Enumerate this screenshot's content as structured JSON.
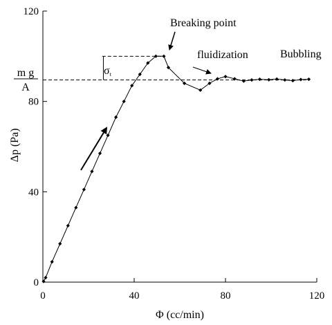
{
  "chart_data": {
    "type": "line",
    "title": "",
    "xlabel": "Φ (cc/min)",
    "ylabel": "Δp (Pa)",
    "xlim": [
      0,
      120
    ],
    "ylim": [
      0,
      120
    ],
    "xticks": [
      0,
      40,
      80,
      120
    ],
    "yticks": [
      0,
      40,
      80,
      120
    ],
    "xtick_labels": [
      "0",
      "40",
      "80",
      "120"
    ],
    "ytick_labels": [
      "0",
      "40",
      "80",
      "120"
    ],
    "grid": false,
    "legend": "none",
    "series": [
      {
        "marker": "diamond",
        "color": "#000000",
        "x": [
          0.3,
          1.2,
          4,
          7.5,
          11,
          14.5,
          18,
          21.5,
          25,
          28.5,
          32,
          35.5,
          39,
          42.5,
          46,
          49.5,
          53,
          55,
          62,
          69,
          73,
          76.5,
          80,
          84,
          88,
          91.5,
          95,
          99,
          102.5,
          106,
          109.5,
          113,
          116.5
        ],
        "y": [
          0.3,
          2,
          9,
          17,
          25,
          33,
          41,
          49,
          57,
          65,
          73,
          80,
          87,
          92,
          97,
          100,
          100,
          95,
          88,
          85,
          88,
          90,
          91,
          90,
          89,
          89.5,
          89.8,
          89.6,
          89.9,
          89.5,
          89.2,
          89.7,
          89.8
        ]
      }
    ],
    "reference_lines": {
      "weight_level": 89.5,
      "peak_level": 100
    },
    "annotations": {
      "weight_num": "m g",
      "weight_den": "A",
      "sigma_symbol": "σ",
      "sigma_sub": "t",
      "breaking_point": "Breaking point",
      "fluidization": "fluidization",
      "bubbling": "Bubbling"
    }
  }
}
